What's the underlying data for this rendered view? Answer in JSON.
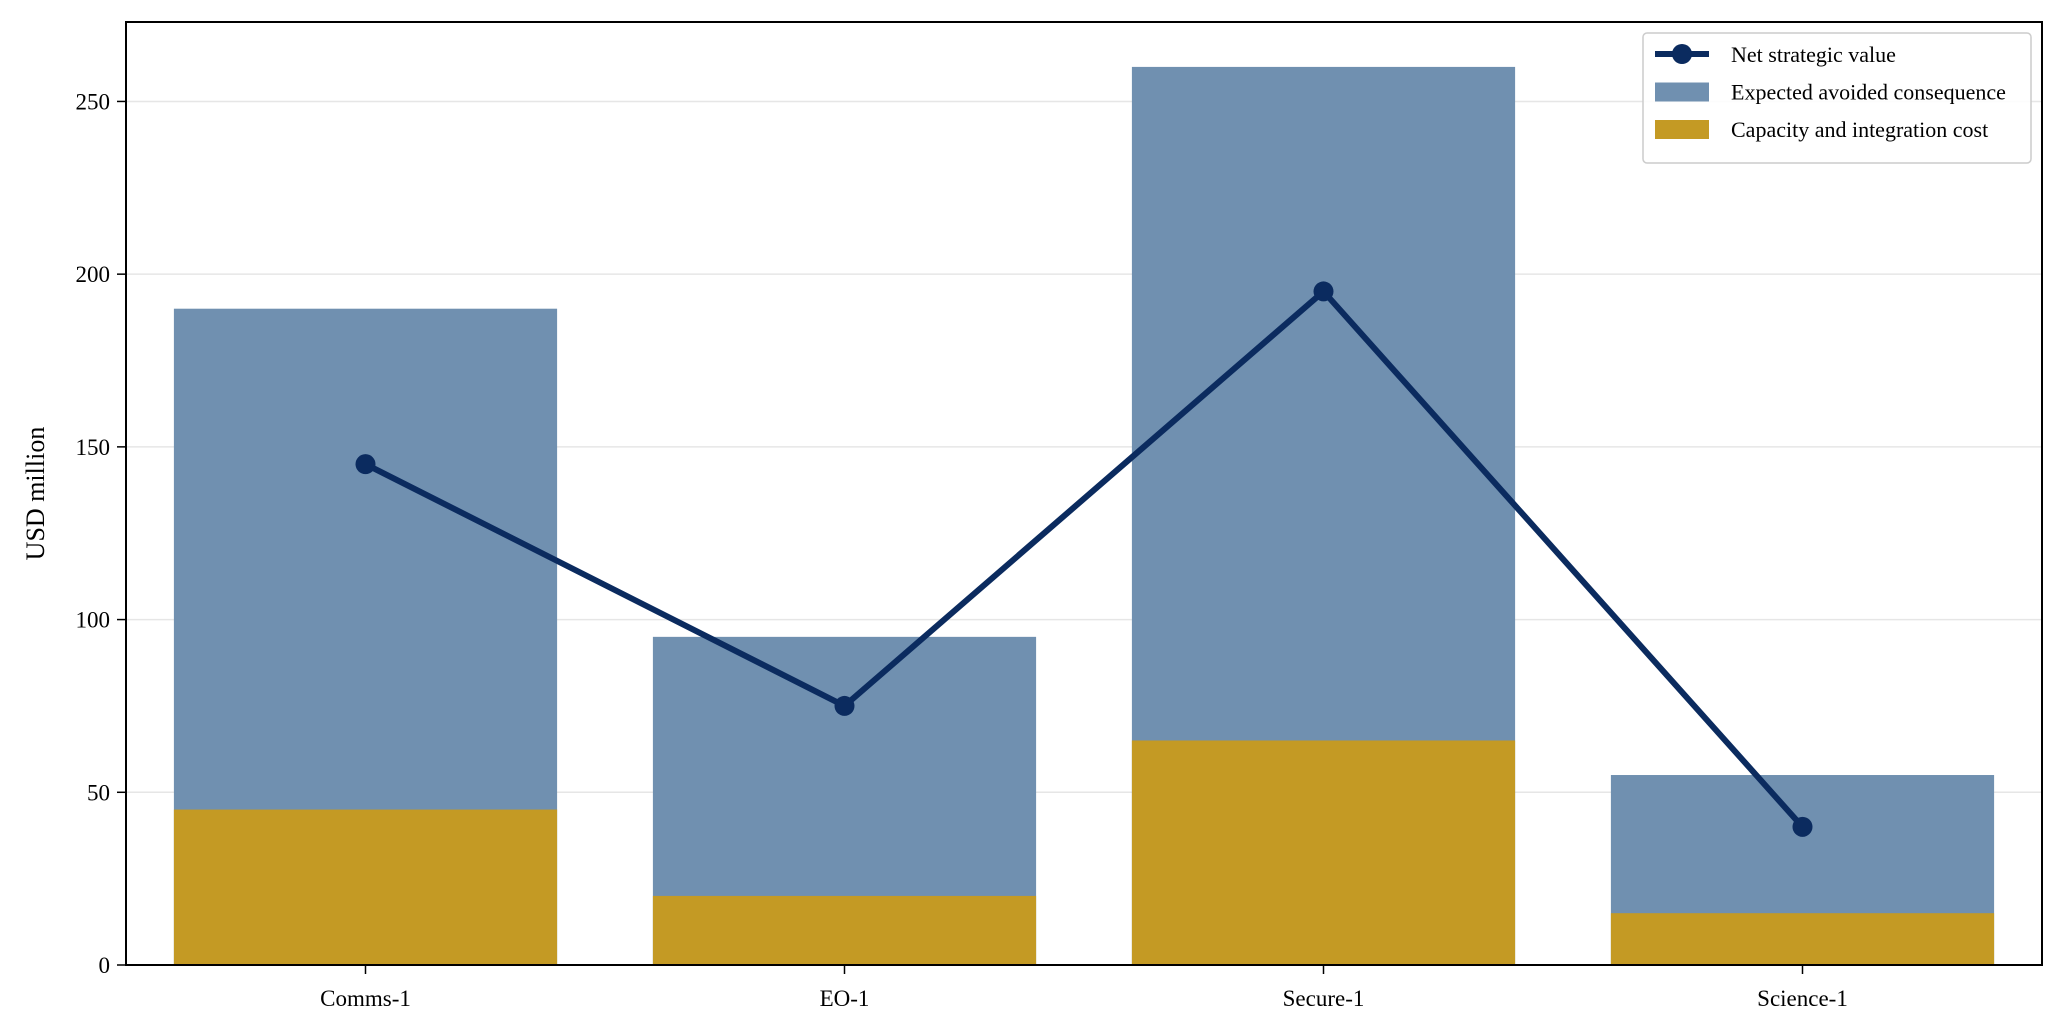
{
  "chart_data": {
    "type": "bar",
    "stacked": false,
    "categories": [
      "Comms-1",
      "EO-1",
      "Secure-1",
      "Science-1"
    ],
    "series": [
      {
        "name": "Expected avoided consequence",
        "type": "bar",
        "values": [
          190,
          95,
          260,
          55
        ],
        "color": "#7090b0"
      },
      {
        "name": "Capacity and integration cost",
        "type": "bar",
        "values": [
          45,
          20,
          65,
          15
        ],
        "color": "#c49a24"
      },
      {
        "name": "Net strategic value",
        "type": "line",
        "values": [
          145,
          75,
          195,
          40
        ],
        "color": "#0b2b5f"
      }
    ],
    "legend_order": [
      "Net strategic value",
      "Expected avoided consequence",
      "Capacity and integration cost"
    ],
    "title": "",
    "xlabel": "",
    "ylabel": "USD million",
    "ylim": [
      0,
      273
    ],
    "yticks": [
      0,
      50,
      100,
      150,
      200,
      250
    ],
    "grid": "horizontal",
    "legend_position": "top-right"
  }
}
